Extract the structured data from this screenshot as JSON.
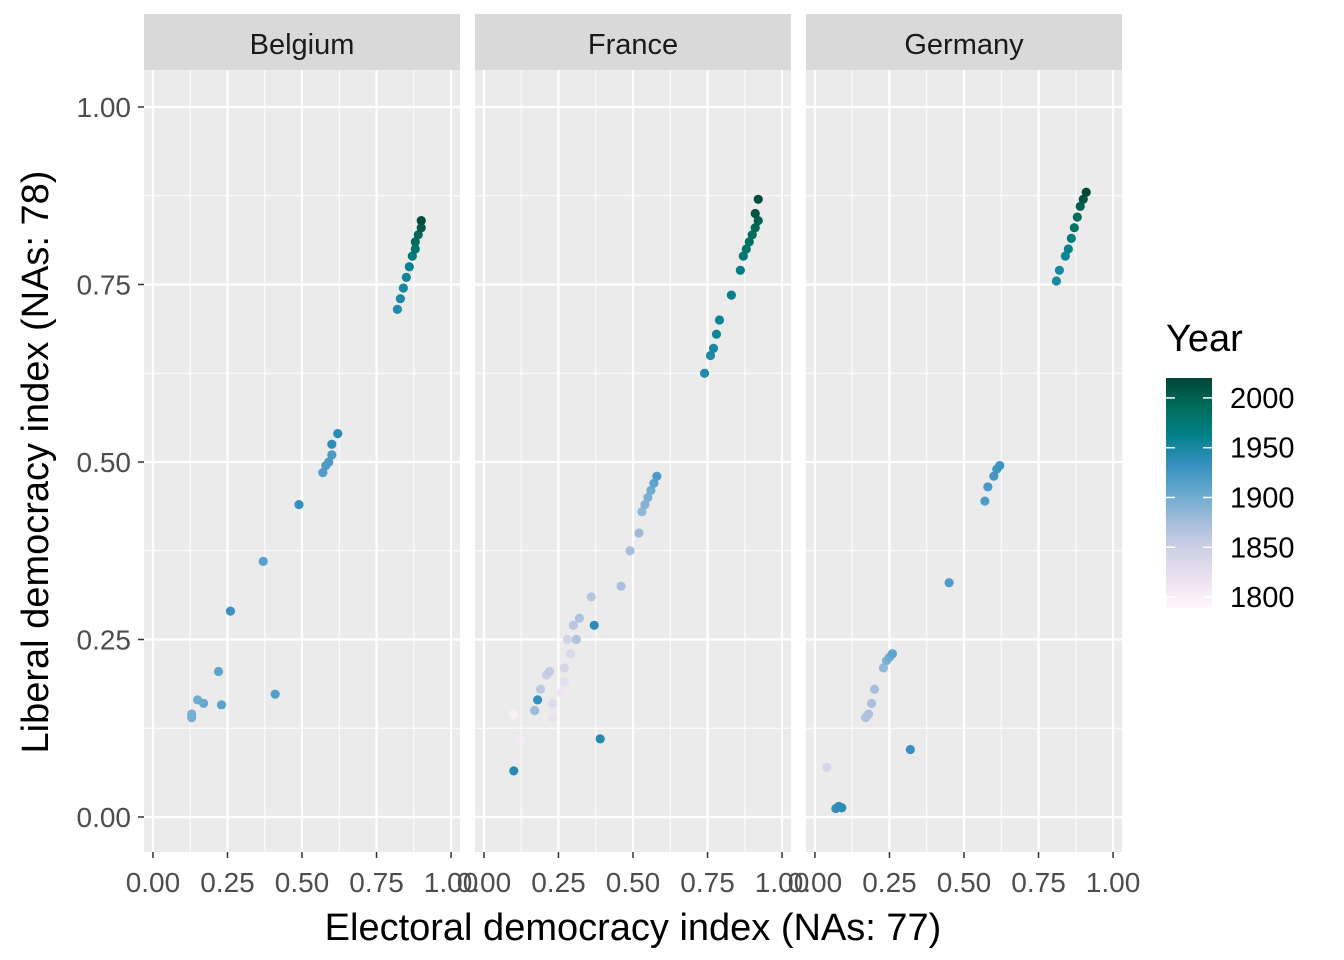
{
  "chart_data": {
    "type": "scatter",
    "xlabel": "Electoral democracy index (NAs: 77)",
    "ylabel": "Liberal democracy index (NAs: 78)",
    "xlim": [
      0,
      1
    ],
    "ylim": [
      0,
      1
    ],
    "x_ticks": [
      "0.00",
      "0.25",
      "0.50",
      "0.75",
      "1.00"
    ],
    "y_ticks": [
      "0.00",
      "0.25",
      "0.50",
      "0.75",
      "1.00"
    ],
    "grid": true,
    "legend": {
      "title": "Year",
      "placement": "right",
      "type": "colorbar",
      "ticks": [
        "2000",
        "1950",
        "1900",
        "1850",
        "1800"
      ],
      "range": [
        1789,
        2020
      ],
      "colors": [
        "#fff7fb",
        "#ece2f0",
        "#d0d1e6",
        "#a6bddb",
        "#67a9cf",
        "#3690c0",
        "#02818a",
        "#016c59",
        "#014636"
      ]
    },
    "panels": [
      {
        "name": "Belgium",
        "points": [
          [
            0.13,
            0.14,
            1898
          ],
          [
            0.13,
            0.145,
            1897
          ],
          [
            0.15,
            0.165,
            1900
          ],
          [
            0.17,
            0.16,
            1905
          ],
          [
            0.22,
            0.205,
            1910
          ],
          [
            0.23,
            0.158,
            1912
          ],
          [
            0.26,
            0.29,
            1930
          ],
          [
            0.37,
            0.36,
            1914
          ],
          [
            0.41,
            0.173,
            1915
          ],
          [
            0.49,
            0.44,
            1935
          ],
          [
            0.57,
            0.485,
            1919
          ],
          [
            0.58,
            0.495,
            1920
          ],
          [
            0.59,
            0.5,
            1921
          ],
          [
            0.6,
            0.51,
            1922
          ],
          [
            0.6,
            0.525,
            1938
          ],
          [
            0.62,
            0.54,
            1940
          ],
          [
            0.82,
            0.715,
            1945
          ],
          [
            0.83,
            0.73,
            1948
          ],
          [
            0.84,
            0.745,
            1950
          ],
          [
            0.85,
            0.76,
            1955
          ],
          [
            0.86,
            0.775,
            1960
          ],
          [
            0.87,
            0.79,
            1970
          ],
          [
            0.88,
            0.8,
            1980
          ],
          [
            0.88,
            0.81,
            1990
          ],
          [
            0.89,
            0.82,
            1995
          ],
          [
            0.9,
            0.83,
            2005
          ],
          [
            0.9,
            0.84,
            2015
          ]
        ]
      },
      {
        "name": "France",
        "points": [
          [
            0.1,
            0.065,
            1942
          ],
          [
            0.1,
            0.145,
            1800
          ],
          [
            0.12,
            0.11,
            1805
          ],
          [
            0.17,
            0.15,
            1880
          ],
          [
            0.18,
            0.165,
            1935
          ],
          [
            0.19,
            0.18,
            1860
          ],
          [
            0.21,
            0.2,
            1850
          ],
          [
            0.22,
            0.205,
            1855
          ],
          [
            0.23,
            0.16,
            1830
          ],
          [
            0.23,
            0.14,
            1820
          ],
          [
            0.26,
            0.175,
            1815
          ],
          [
            0.27,
            0.19,
            1825
          ],
          [
            0.27,
            0.21,
            1840
          ],
          [
            0.28,
            0.25,
            1845
          ],
          [
            0.29,
            0.23,
            1835
          ],
          [
            0.3,
            0.27,
            1862
          ],
          [
            0.31,
            0.25,
            1868
          ],
          [
            0.32,
            0.28,
            1870
          ],
          [
            0.36,
            0.31,
            1865
          ],
          [
            0.37,
            0.27,
            1940
          ],
          [
            0.39,
            0.11,
            1943
          ],
          [
            0.46,
            0.325,
            1872
          ],
          [
            0.49,
            0.375,
            1875
          ],
          [
            0.52,
            0.4,
            1880
          ],
          [
            0.53,
            0.43,
            1885
          ],
          [
            0.54,
            0.44,
            1890
          ],
          [
            0.55,
            0.45,
            1895
          ],
          [
            0.56,
            0.46,
            1900
          ],
          [
            0.57,
            0.47,
            1910
          ],
          [
            0.58,
            0.48,
            1920
          ],
          [
            0.74,
            0.625,
            1945
          ],
          [
            0.76,
            0.65,
            1946
          ],
          [
            0.77,
            0.66,
            1950
          ],
          [
            0.78,
            0.68,
            1955
          ],
          [
            0.79,
            0.7,
            1958
          ],
          [
            0.83,
            0.735,
            1962
          ],
          [
            0.86,
            0.77,
            1968
          ],
          [
            0.87,
            0.79,
            1975
          ],
          [
            0.88,
            0.8,
            1980
          ],
          [
            0.89,
            0.81,
            1985
          ],
          [
            0.9,
            0.82,
            1990
          ],
          [
            0.91,
            0.83,
            1995
          ],
          [
            0.92,
            0.84,
            2000
          ],
          [
            0.91,
            0.85,
            2010
          ],
          [
            0.92,
            0.87,
            2015
          ]
        ]
      },
      {
        "name": "Germany",
        "points": [
          [
            0.04,
            0.07,
            1840
          ],
          [
            0.07,
            0.012,
            1935
          ],
          [
            0.08,
            0.015,
            1938
          ],
          [
            0.09,
            0.013,
            1940
          ],
          [
            0.17,
            0.14,
            1868
          ],
          [
            0.18,
            0.145,
            1870
          ],
          [
            0.19,
            0.16,
            1872
          ],
          [
            0.2,
            0.18,
            1875
          ],
          [
            0.23,
            0.21,
            1885
          ],
          [
            0.24,
            0.22,
            1895
          ],
          [
            0.25,
            0.225,
            1900
          ],
          [
            0.26,
            0.23,
            1910
          ],
          [
            0.32,
            0.095,
            1933
          ],
          [
            0.45,
            0.33,
            1919
          ],
          [
            0.57,
            0.445,
            1920
          ],
          [
            0.58,
            0.465,
            1922
          ],
          [
            0.6,
            0.48,
            1925
          ],
          [
            0.61,
            0.49,
            1928
          ],
          [
            0.62,
            0.495,
            1930
          ],
          [
            0.81,
            0.755,
            1949
          ],
          [
            0.82,
            0.77,
            1950
          ],
          [
            0.84,
            0.79,
            1955
          ],
          [
            0.85,
            0.8,
            1960
          ],
          [
            0.86,
            0.815,
            1970
          ],
          [
            0.87,
            0.83,
            1980
          ],
          [
            0.88,
            0.845,
            1990
          ],
          [
            0.89,
            0.86,
            2000
          ],
          [
            0.9,
            0.87,
            2010
          ],
          [
            0.91,
            0.88,
            2018
          ]
        ]
      }
    ]
  }
}
